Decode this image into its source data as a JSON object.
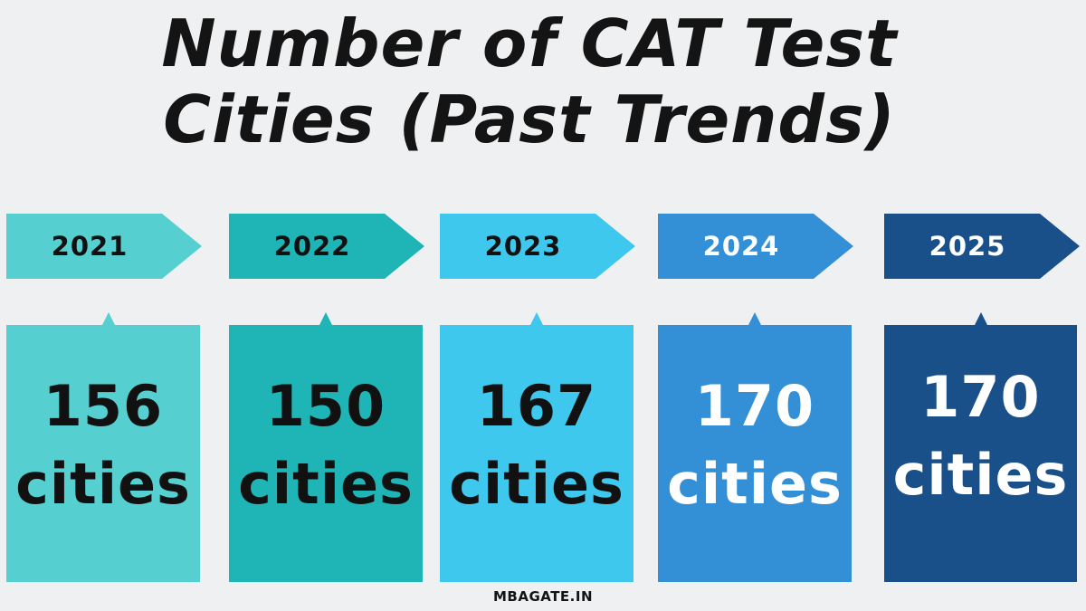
{
  "title_line1": "Number of CAT Test",
  "title_line2": "Cities (Past Trends)",
  "footer": "MBAGATE.IN",
  "chart_data": {
    "type": "table",
    "title": "Number of CAT Test Cities (Past Trends)",
    "categories": [
      "2021",
      "2022",
      "2023",
      "2024",
      "2025"
    ],
    "values": [
      156,
      150,
      167,
      170,
      170
    ],
    "unit": "cities",
    "items": [
      {
        "year": "2021",
        "value": "156",
        "unit": "cities",
        "color": "#55cfd0",
        "text_color": "#111111"
      },
      {
        "year": "2022",
        "value": "150",
        "unit": "cities",
        "color": "#1fb4b6",
        "text_color": "#111111"
      },
      {
        "year": "2023",
        "value": "167",
        "unit": "cities",
        "color": "#3ec8ee",
        "text_color": "#111111"
      },
      {
        "year": "2024",
        "value": "170",
        "unit": "cities",
        "color": "#3490d6",
        "text_color": "#ffffff"
      },
      {
        "year": "2025",
        "value": "170",
        "unit": "cities",
        "color": "#1a508a",
        "text_color": "#ffffff"
      }
    ]
  }
}
